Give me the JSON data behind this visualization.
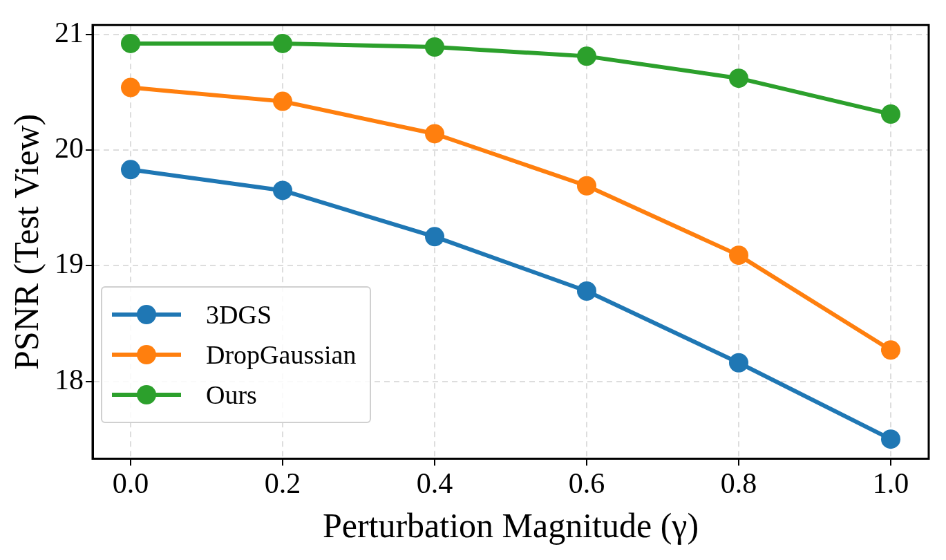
{
  "chart_data": {
    "type": "line",
    "xlabel": "Perturbation Magnitude (γ)",
    "ylabel": "PSNR (Test View)",
    "x": [
      0.0,
      0.2,
      0.4,
      0.6,
      0.8,
      1.0
    ],
    "series": [
      {
        "name": "3DGS",
        "color": "#1f77b4",
        "values": [
          19.83,
          19.65,
          19.25,
          18.78,
          18.16,
          17.5
        ]
      },
      {
        "name": "DropGaussian",
        "color": "#ff7f0e",
        "values": [
          20.54,
          20.42,
          20.14,
          19.69,
          19.09,
          18.27
        ]
      },
      {
        "name": "Ours",
        "color": "#2ca02c",
        "values": [
          20.92,
          20.92,
          20.89,
          20.81,
          20.62,
          20.31
        ]
      }
    ],
    "xlim": [
      -0.05,
      1.05
    ],
    "ylim": [
      17.33,
      21.08
    ],
    "xticks": [
      {
        "value": 0,
        "label": "0.0"
      },
      {
        "value": 0.2,
        "label": "0.2"
      },
      {
        "value": 0.4,
        "label": "0.4"
      },
      {
        "value": 0.6,
        "label": "0.6"
      },
      {
        "value": 0.8,
        "label": "0.8"
      },
      {
        "value": 1,
        "label": "1.0"
      }
    ],
    "yticks": [
      18,
      19,
      20,
      21
    ],
    "grid": true,
    "legend": "bottom left",
    "marker": "circle",
    "line_style": "solid"
  }
}
